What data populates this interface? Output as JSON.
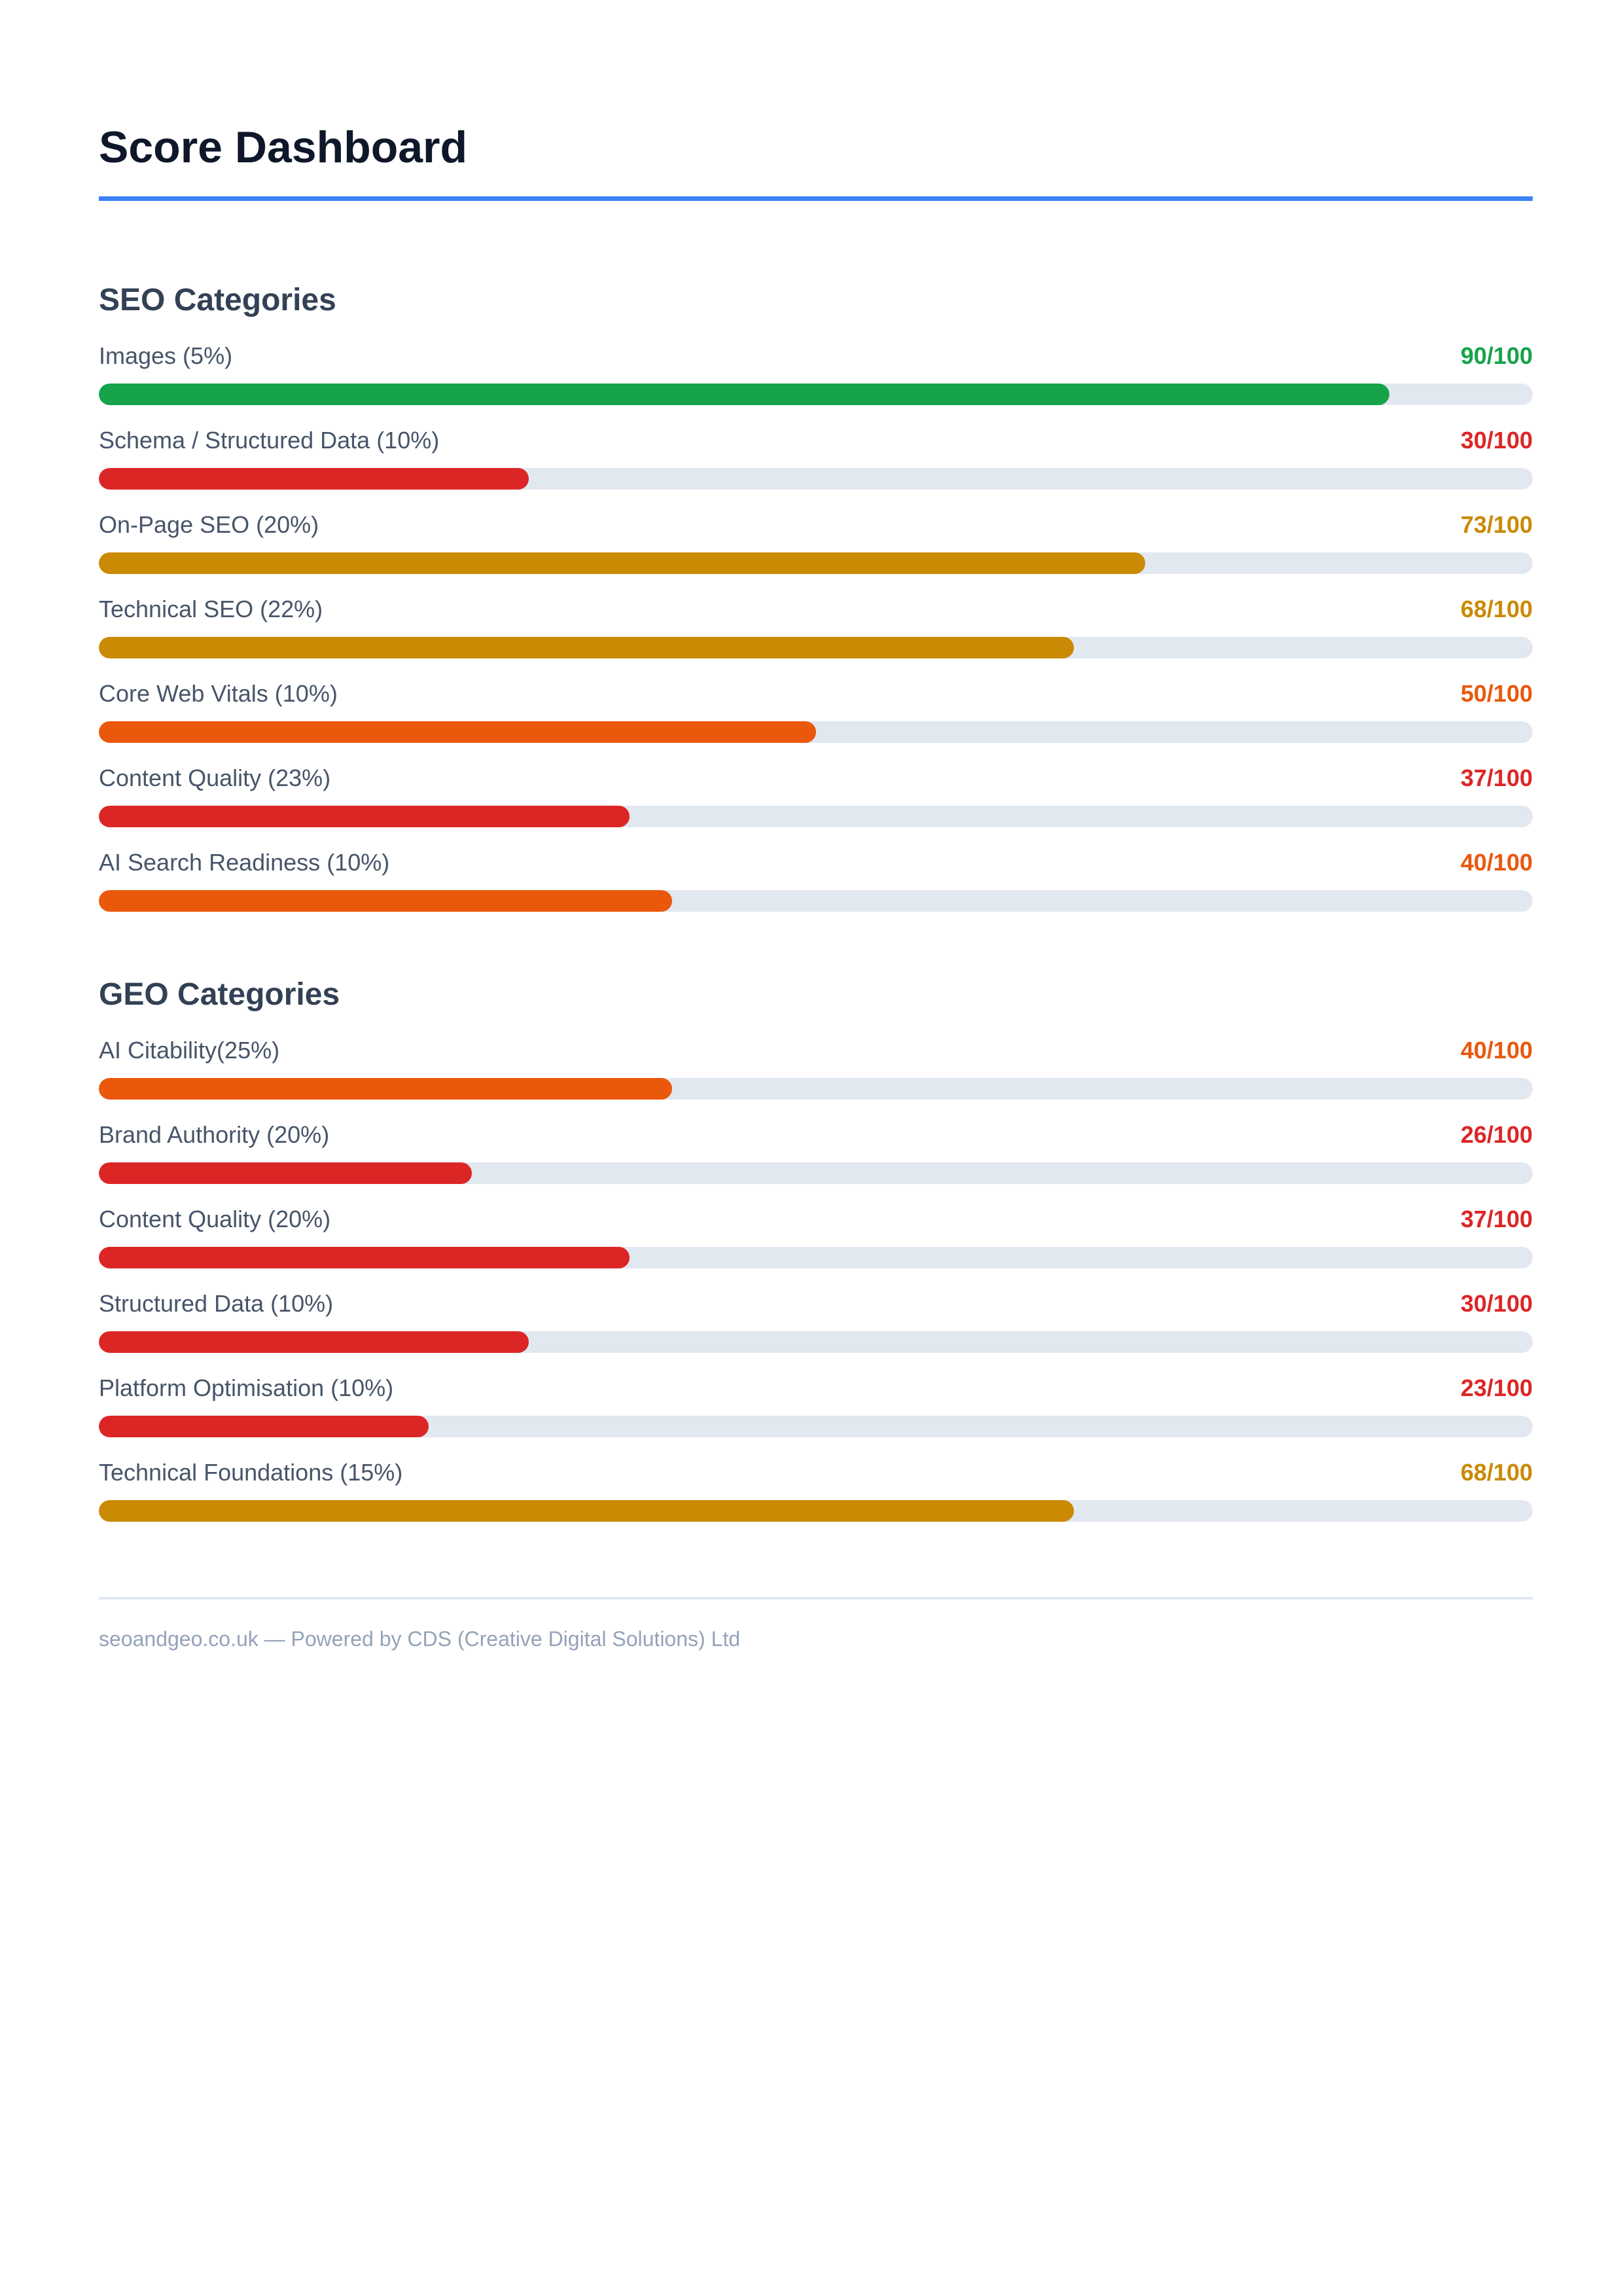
{
  "title": "Score Dashboard",
  "colors": {
    "accent": "#3b82f6",
    "good": "#16a34a",
    "fair": "#ca8a04",
    "warning": "#ea580c",
    "poor": "#dc2626",
    "track": "#e2e8f0"
  },
  "seo": {
    "heading": "SEO Categories",
    "items": [
      {
        "label": "Images (5%)",
        "score": 90,
        "score_text": "90/100",
        "color": "#16a34a"
      },
      {
        "label": "Schema / Structured Data (10%)",
        "score": 30,
        "score_text": "30/100",
        "color": "#dc2626"
      },
      {
        "label": "On-Page SEO (20%)",
        "score": 73,
        "score_text": "73/100",
        "color": "#ca8a04"
      },
      {
        "label": "Technical SEO (22%)",
        "score": 68,
        "score_text": "68/100",
        "color": "#ca8a04"
      },
      {
        "label": "Core Web Vitals (10%)",
        "score": 50,
        "score_text": "50/100",
        "color": "#ea580c"
      },
      {
        "label": "Content Quality (23%)",
        "score": 37,
        "score_text": "37/100",
        "color": "#dc2626"
      },
      {
        "label": "AI Search Readiness (10%)",
        "score": 40,
        "score_text": "40/100",
        "color": "#ea580c"
      }
    ]
  },
  "geo": {
    "heading": "GEO Categories",
    "items": [
      {
        "label": "AI Citability(25%)",
        "score": 40,
        "score_text": "40/100",
        "color": "#ea580c"
      },
      {
        "label": "Brand Authority (20%)",
        "score": 26,
        "score_text": "26/100",
        "color": "#dc2626"
      },
      {
        "label": "Content Quality (20%)",
        "score": 37,
        "score_text": "37/100",
        "color": "#dc2626"
      },
      {
        "label": "Structured Data (10%)",
        "score": 30,
        "score_text": "30/100",
        "color": "#dc2626"
      },
      {
        "label": "Platform Optimisation (10%)",
        "score": 23,
        "score_text": "23/100",
        "color": "#dc2626"
      },
      {
        "label": "Technical Foundations (15%)",
        "score": 68,
        "score_text": "68/100",
        "color": "#ca8a04"
      }
    ]
  },
  "footer": "seoandgeo.co.uk — Powered by CDS (Creative Digital Solutions) Ltd"
}
